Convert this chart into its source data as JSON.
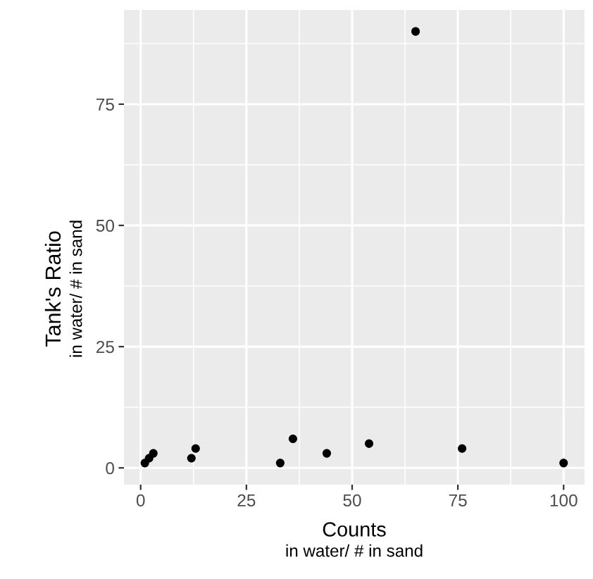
{
  "chart_data": {
    "type": "scatter",
    "xlabel": "Counts\nin water/ # in sand",
    "ylabel": "Tank's Ratio\nin water/ # in sand",
    "x": [
      1,
      2,
      3,
      12,
      13,
      33,
      36,
      44,
      54,
      65,
      76,
      100
    ],
    "values": [
      1,
      2,
      3,
      2,
      4,
      1,
      6,
      3,
      5,
      90,
      4,
      1
    ],
    "color": "#000000",
    "marker": "circle",
    "xlim": [
      -3.95,
      104.95
    ],
    "ylim": [
      -3.45,
      94.45
    ],
    "xticks": [
      0,
      25,
      50,
      75,
      100
    ],
    "yticks": [
      0,
      25,
      50,
      75
    ],
    "grid": true
  }
}
